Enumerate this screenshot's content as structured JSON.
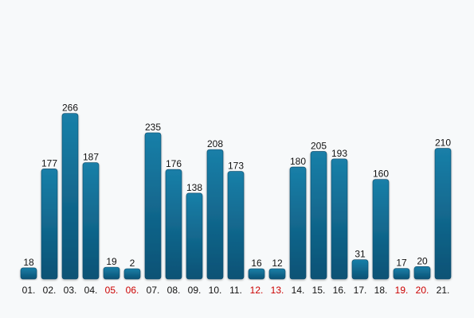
{
  "chart_data": {
    "type": "bar",
    "title": "",
    "xlabel": "",
    "ylabel": "",
    "ylim": [
      0,
      266
    ],
    "grid": false,
    "legend": "none",
    "categories": [
      "01.",
      "02.",
      "03.",
      "04.",
      "05.",
      "06.",
      "07.",
      "08.",
      "09.",
      "10.",
      "11.",
      "12.",
      "13.",
      "14.",
      "15.",
      "16.",
      "17.",
      "18.",
      "19.",
      "20.",
      "21."
    ],
    "values": [
      18,
      177,
      266,
      187,
      19,
      2,
      235,
      176,
      138,
      208,
      173,
      16,
      12,
      180,
      205,
      193,
      31,
      160,
      17,
      20,
      210
    ],
    "weekend": [
      false,
      false,
      false,
      false,
      true,
      true,
      false,
      false,
      false,
      false,
      false,
      true,
      true,
      false,
      false,
      false,
      false,
      false,
      true,
      true,
      false
    ]
  },
  "colors": {
    "bar_top": "#1a7fa8",
    "bar_bottom": "#0a5275",
    "bar_edge": "#0b4a6a",
    "weekday_label": "#111111",
    "weekend_label": "#cc0000",
    "value_label": "#111111",
    "background": "#f7f9fa"
  }
}
